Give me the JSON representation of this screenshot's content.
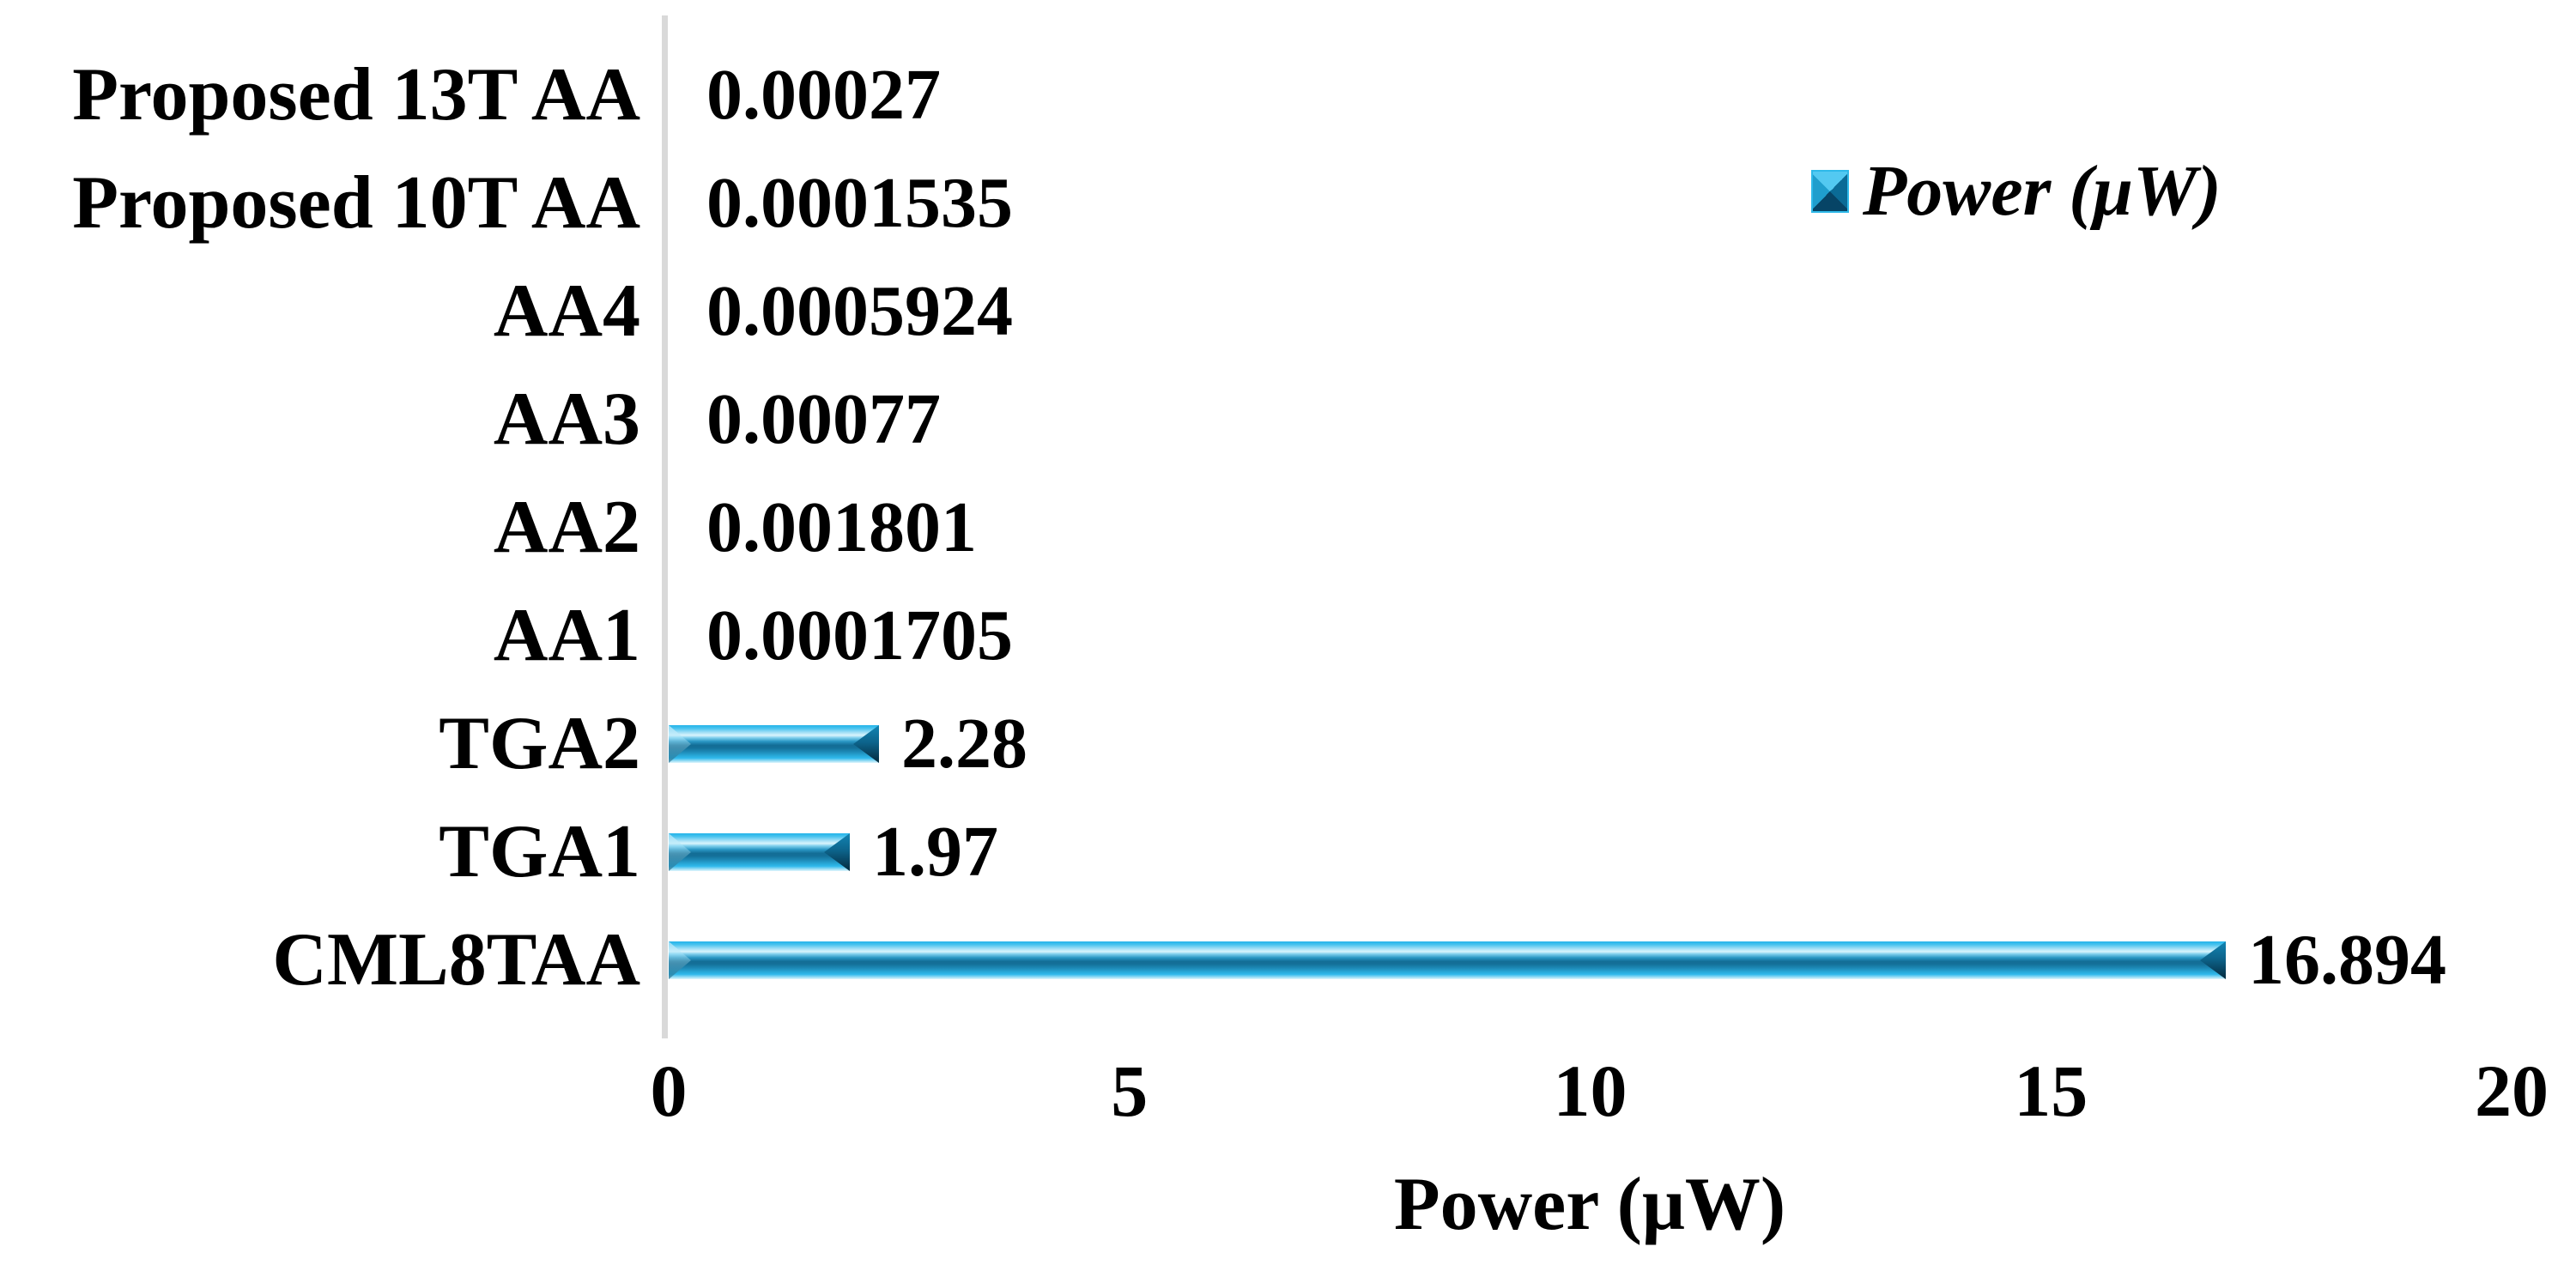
{
  "chart_data": {
    "type": "bar",
    "orientation": "horizontal",
    "title": "",
    "categories": [
      "Proposed 13T AA",
      "Proposed 10T AA",
      "AA4",
      "AA3",
      "AA2",
      "AA1",
      "TGA2",
      "TGA1",
      "CML8TAA"
    ],
    "series": [
      {
        "name": "Power (μW)",
        "values": [
          0.00027,
          0.0001535,
          0.0005924,
          0.00077,
          0.001801,
          0.0001705,
          2.28,
          1.97,
          16.894
        ],
        "value_labels": [
          "0.00027",
          "0.0001535",
          "0.0005924",
          "0.00077",
          "0.001801",
          "0.0001705",
          "2.28",
          "1.97",
          "16.894"
        ]
      }
    ],
    "xlabel": "Power (μW)",
    "ylabel": "",
    "xlim": [
      0,
      20
    ],
    "xticks": [
      0,
      5,
      10,
      15,
      20
    ],
    "xtick_labels": [
      "0",
      "5",
      "10",
      "15",
      "20"
    ],
    "grid": false,
    "data_labels_visible": true,
    "legend": {
      "visible": true,
      "label": "Power (μW)",
      "position": "top-right",
      "marker": "beveled-square-icon"
    },
    "colors": {
      "bar_fill": "#29B7EA",
      "bar_bevel_dark": "#0D648C",
      "bar_highlight": "#D9F4FC",
      "axis_line": "#D9D9D9",
      "text": "#000000",
      "background": "#FFFFFF"
    }
  }
}
